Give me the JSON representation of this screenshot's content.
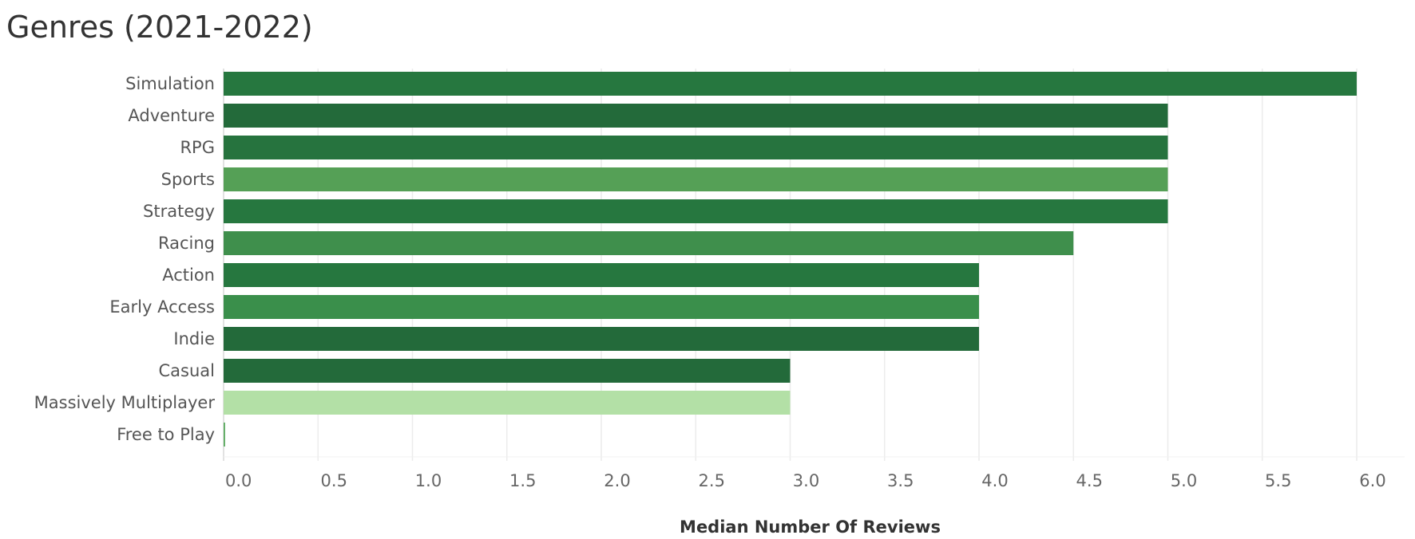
{
  "chart_data": {
    "type": "bar",
    "orientation": "horizontal",
    "title": "Genres (2021-2022)",
    "xlabel": "Median Number Of Reviews",
    "ylabel": "",
    "categories": [
      "Simulation",
      "Adventure",
      "RPG",
      "Sports",
      "Strategy",
      "Racing",
      "Action",
      "Early Access",
      "Indie",
      "Casual",
      "Massively Multiplayer",
      "Free to Play"
    ],
    "values": [
      6,
      5,
      5,
      5,
      5,
      4.5,
      4,
      4,
      4,
      3,
      3,
      0
    ],
    "bar_colors": [
      "#26773f",
      "#236a3a",
      "#26733e",
      "#55a056",
      "#26773f",
      "#3f8f4c",
      "#26773f",
      "#3a8f4b",
      "#236a3a",
      "#236a3a",
      "#b3e0a6",
      "#66b06a"
    ],
    "xlim": [
      0,
      6
    ],
    "xticks": [
      "0.0",
      "0.5",
      "1.0",
      "1.5",
      "2.0",
      "2.5",
      "3.0",
      "3.5",
      "4.0",
      "4.5",
      "5.0",
      "5.5",
      "6.0"
    ],
    "grid": true,
    "legend": "none"
  }
}
